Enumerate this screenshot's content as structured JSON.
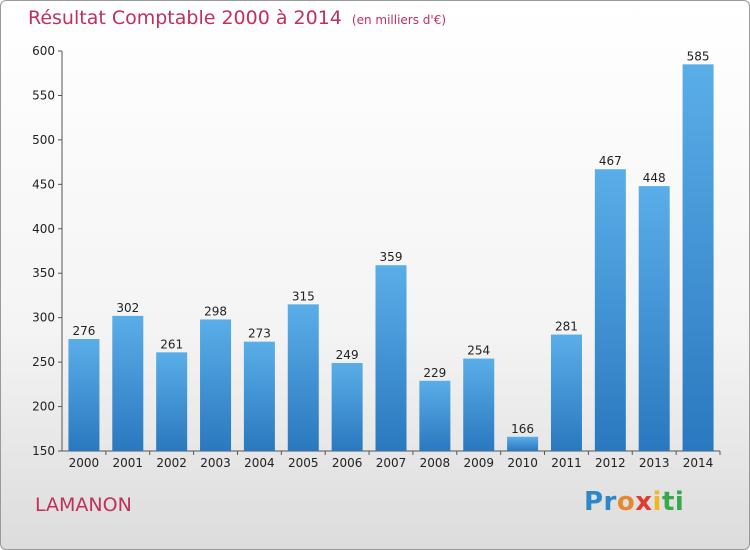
{
  "title": "Résultat Comptable 2000 à 2014",
  "subtitle": "(en milliers d'€)",
  "commune": "LAMANON",
  "logo": {
    "p1": "Pr",
    "p2": "o",
    "p3": "x",
    "p4": "i",
    "p5": "ti"
  },
  "colors": {
    "bar_light": "#5aaee8",
    "bar_dark": "#2a78bf",
    "title": "#c0305a"
  },
  "chart_data": {
    "type": "bar",
    "categories": [
      "2000",
      "2001",
      "2002",
      "2003",
      "2004",
      "2005",
      "2006",
      "2007",
      "2008",
      "2009",
      "2010",
      "2011",
      "2012",
      "2013",
      "2014"
    ],
    "values": [
      276,
      302,
      261,
      298,
      273,
      315,
      249,
      359,
      229,
      254,
      166,
      281,
      467,
      448,
      585
    ],
    "ylim": [
      150,
      600
    ],
    "yticks": [
      150,
      200,
      250,
      300,
      350,
      400,
      450,
      500,
      550,
      600
    ],
    "grid": false,
    "data_labels": true
  }
}
